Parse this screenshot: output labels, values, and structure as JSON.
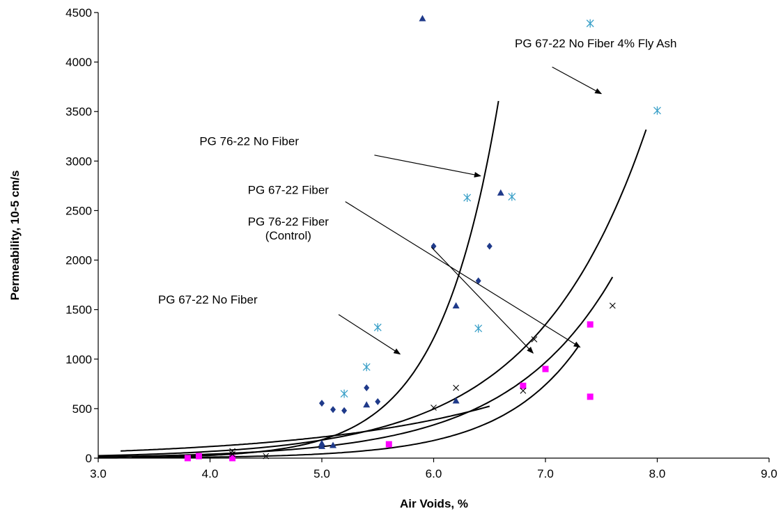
{
  "chart_data": {
    "type": "scatter",
    "title": "",
    "xlabel": "Air Voids, %",
    "ylabel": "Permeability, 10-5 cm/s",
    "xlim": [
      3.0,
      9.0
    ],
    "ylim": [
      0,
      4500
    ],
    "xticks": [
      3.0,
      4.0,
      5.0,
      6.0,
      7.0,
      8.0,
      9.0
    ],
    "yticks": [
      0,
      500,
      1000,
      1500,
      2000,
      2500,
      3000,
      3500,
      4000,
      4500
    ],
    "xtick_labels": [
      "3.0",
      "4.0",
      "5.0",
      "6.0",
      "7.0",
      "8.0",
      "9.0"
    ],
    "ytick_labels": [
      "0",
      "500",
      "1000",
      "1500",
      "2000",
      "2500",
      "3000",
      "3500",
      "4000",
      "4500"
    ],
    "grid": false,
    "legend": "none",
    "series": [
      {
        "marker": "diamond",
        "color": "#1f3a8a",
        "points": [
          [
            5.0,
            555
          ],
          [
            5.1,
            490
          ],
          [
            5.2,
            480
          ],
          [
            5.4,
            710
          ],
          [
            5.5,
            570
          ],
          [
            6.0,
            2140
          ],
          [
            6.4,
            1790
          ],
          [
            6.5,
            2140
          ]
        ]
      },
      {
        "marker": "triangle",
        "color": "#1f3a8a",
        "points": [
          [
            5.0,
            150
          ],
          [
            5.0,
            120
          ],
          [
            5.1,
            130
          ],
          [
            5.4,
            540
          ],
          [
            5.9,
            4440
          ],
          [
            6.2,
            1540
          ],
          [
            6.2,
            580
          ],
          [
            6.6,
            2680
          ]
        ]
      },
      {
        "marker": "square",
        "color": "#ff00ff",
        "points": [
          [
            3.8,
            0
          ],
          [
            3.9,
            20
          ],
          [
            4.2,
            0
          ],
          [
            5.6,
            140
          ],
          [
            6.8,
            730
          ],
          [
            7.0,
            900
          ],
          [
            7.4,
            1350
          ],
          [
            7.4,
            620
          ]
        ]
      },
      {
        "marker": "x",
        "color": "#000000",
        "points": [
          [
            4.2,
            70
          ],
          [
            4.2,
            40
          ],
          [
            4.5,
            20
          ],
          [
            6.0,
            510
          ],
          [
            6.2,
            710
          ],
          [
            6.8,
            680
          ],
          [
            6.9,
            1200
          ],
          [
            7.6,
            1540
          ]
        ]
      },
      {
        "marker": "asterisk",
        "color": "#3aa0c8",
        "points": [
          [
            5.2,
            650
          ],
          [
            5.4,
            920
          ],
          [
            5.5,
            1320
          ],
          [
            6.3,
            2630
          ],
          [
            6.4,
            1310
          ],
          [
            6.7,
            2640
          ],
          [
            7.4,
            4390
          ],
          [
            8.0,
            3510
          ]
        ]
      }
    ],
    "curves": [
      {
        "name": "PG 67-22 No Fiber",
        "a": 10.6,
        "b": 0.6,
        "x_range": [
          3.2,
          6.5
        ]
      },
      {
        "name": "PG 76-22 No Fiber",
        "a": 0.0153,
        "b": 1.88,
        "x_range": [
          3.3,
          6.58
        ]
      },
      {
        "name": "PG 67-22 No Fiber 4% Fly Ash",
        "a": 1.23,
        "b": 1.0,
        "x_range": [
          3.0,
          7.9
        ]
      },
      {
        "name": "PG 67-22 Fiber",
        "a": 0.58,
        "b": 1.06,
        "x_range": [
          3.0,
          7.6
        ]
      },
      {
        "name": "PG 76-22 Fiber (Control)",
        "a": 0.0345,
        "b": 1.425,
        "x_range": [
          3.0,
          7.3
        ]
      }
    ],
    "annotations": [
      {
        "lines": [
          "PG 67-22 No Fiber 4% Fly Ash"
        ],
        "text_at": [
          7.45,
          4150
        ],
        "anchor": "middle",
        "arrow_from": [
          7.06,
          3950
        ],
        "arrow_to": [
          7.5,
          3680
        ]
      },
      {
        "lines": [
          "PG 76-22 No Fiber"
        ],
        "text_at": [
          4.35,
          3160
        ],
        "anchor": "middle",
        "arrow_from": [
          5.47,
          3060
        ],
        "arrow_to": [
          6.42,
          2850
        ]
      },
      {
        "lines": [
          "PG 67-22 Fiber"
        ],
        "text_at": [
          4.7,
          2670
        ],
        "anchor": "middle",
        "arrow_from": [
          5.21,
          2590
        ],
        "arrow_to": [
          7.31,
          1120
        ]
      },
      {
        "lines": [
          "PG 76-22 Fiber",
          "(Control)"
        ],
        "text_at": [
          4.7,
          2350
        ],
        "anchor": "middle",
        "arrow_from": [
          5.98,
          2130
        ],
        "arrow_to": [
          6.89,
          1060
        ]
      },
      {
        "lines": [
          "PG 67-22 No Fiber"
        ],
        "text_at": [
          3.98,
          1560
        ],
        "anchor": "middle",
        "arrow_from": [
          5.15,
          1450
        ],
        "arrow_to": [
          5.7,
          1050
        ]
      }
    ]
  }
}
